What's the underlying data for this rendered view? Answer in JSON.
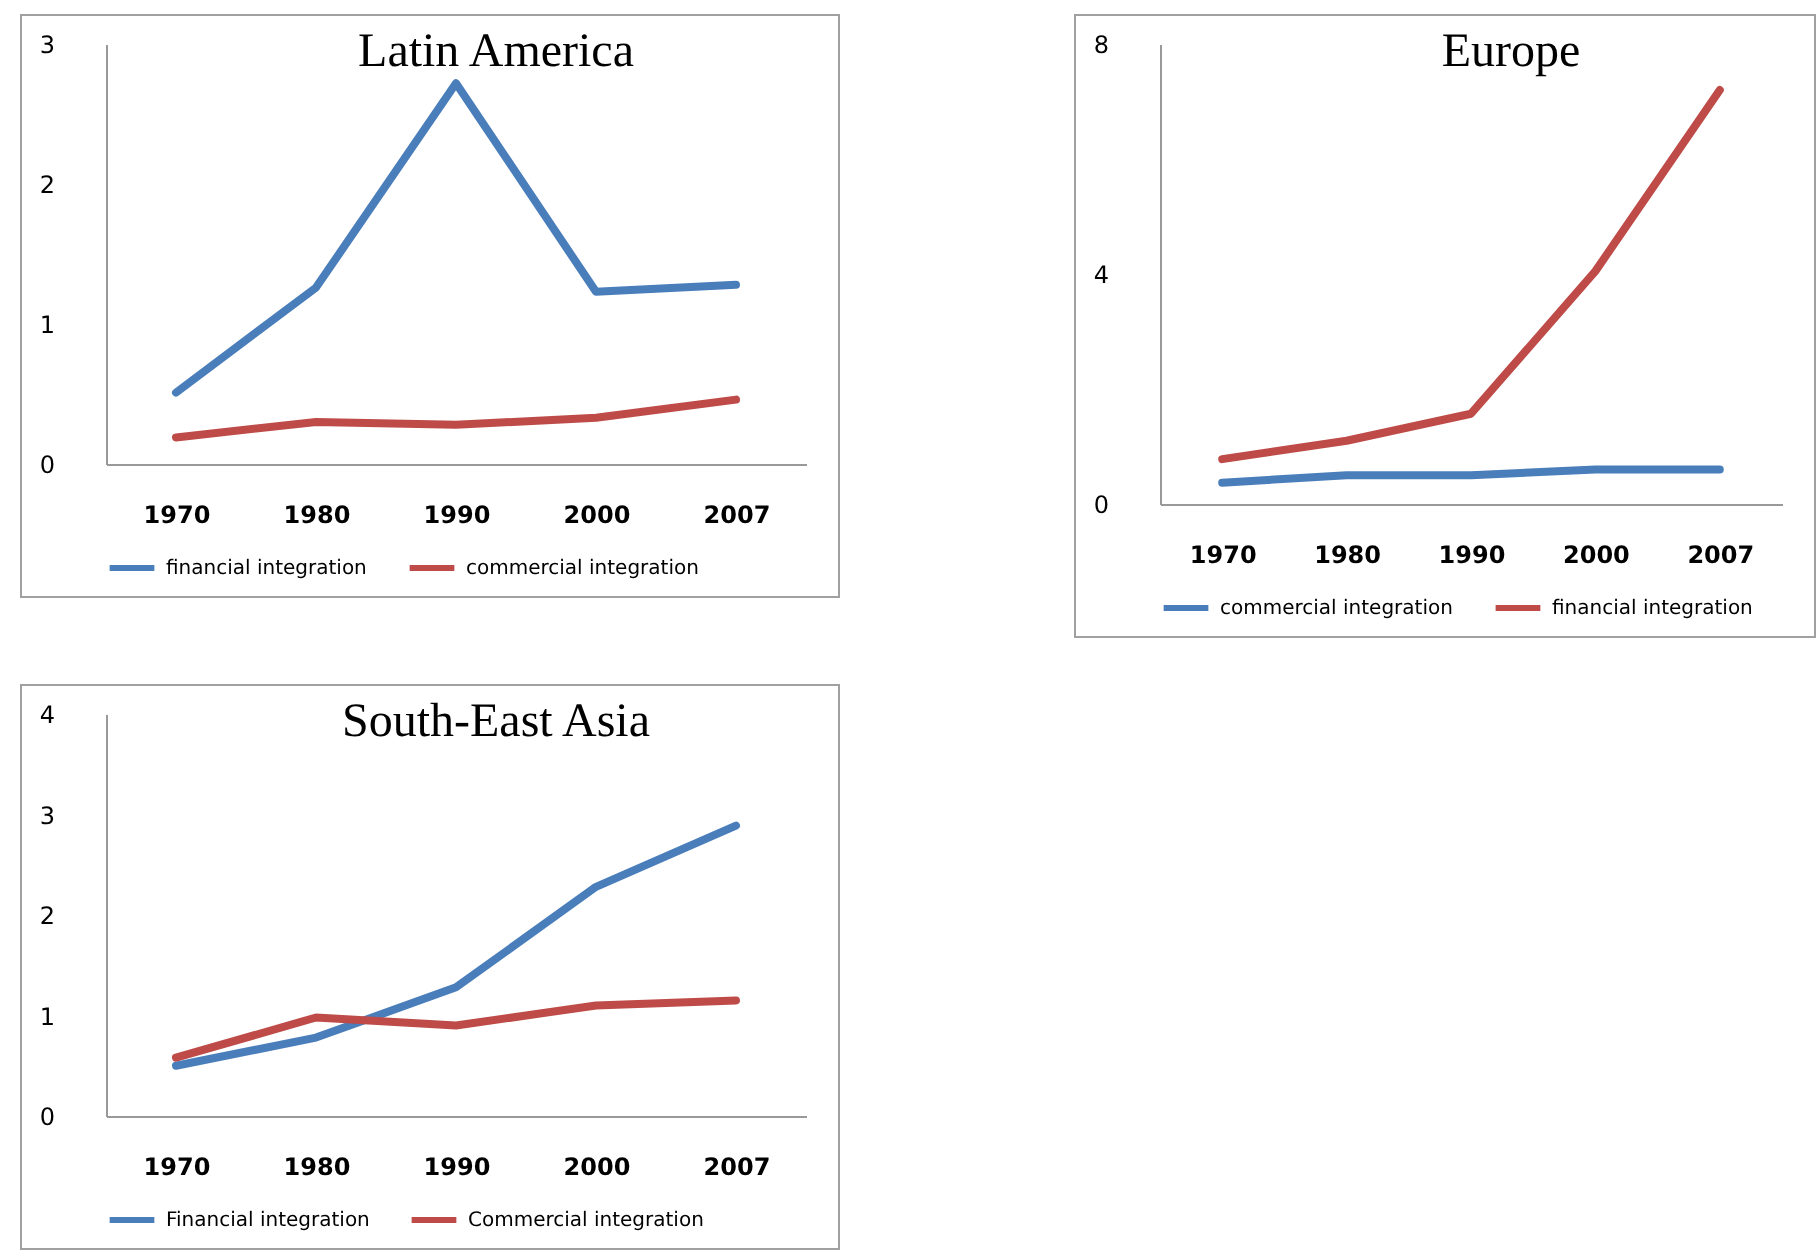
{
  "chart_data": [
    {
      "type": "line",
      "title": "Latin America",
      "categories": [
        "1970",
        "1980",
        "1990",
        "2000",
        "2007"
      ],
      "ylim": [
        0,
        3
      ],
      "yticks": [
        0,
        1,
        2,
        3
      ],
      "grid": false,
      "legend": "bottom",
      "series": [
        {
          "name": "financial integration",
          "color": "#4a7ebb",
          "values": [
            0.51,
            1.26,
            2.72,
            1.23,
            1.28
          ]
        },
        {
          "name": "commercial integration",
          "color": "#be4b48",
          "values": [
            0.19,
            0.3,
            0.28,
            0.33,
            0.46
          ]
        }
      ]
    },
    {
      "type": "line",
      "title": "Europe",
      "categories": [
        "1970",
        "1980",
        "1990",
        "2000",
        "2007"
      ],
      "ylim": [
        0,
        8
      ],
      "yticks": [
        0,
        4,
        8
      ],
      "grid": false,
      "legend": "bottom",
      "series": [
        {
          "name": "commercial integration",
          "color": "#4a7ebb",
          "values": [
            0.37,
            0.5,
            0.5,
            0.6,
            0.6
          ]
        },
        {
          "name": "financial integration",
          "color": "#be4b48",
          "values": [
            0.78,
            1.1,
            1.57,
            4.05,
            7.2
          ]
        }
      ]
    },
    {
      "type": "line",
      "title": "South-East Asia",
      "categories": [
        "1970",
        "1980",
        "1990",
        "2000",
        "2007"
      ],
      "ylim": [
        0,
        4
      ],
      "yticks": [
        0,
        1,
        2,
        3,
        4
      ],
      "grid": false,
      "legend": "bottom",
      "series": [
        {
          "name": "Financial integration",
          "color": "#4a7ebb",
          "values": [
            0.5,
            0.78,
            1.28,
            2.28,
            2.89
          ]
        },
        {
          "name": "Commercial integration",
          "color": "#be4b48",
          "values": [
            0.58,
            0.98,
            0.9,
            1.1,
            1.15
          ]
        }
      ]
    }
  ]
}
